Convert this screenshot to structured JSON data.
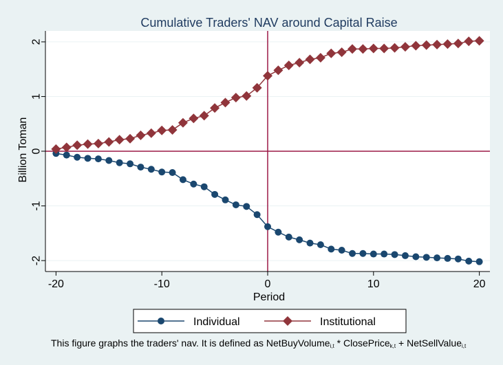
{
  "chart_data": {
    "type": "line",
    "title": "Cumulative Traders' NAV around Capital Raise",
    "xlabel": "Period",
    "ylabel": "Billion Toman",
    "xlim": [
      -21,
      21
    ],
    "ylim": [
      -2.2,
      2.2
    ],
    "xticks": [
      -20,
      -10,
      0,
      10,
      20
    ],
    "xtick_labels": [
      "-20",
      "-10",
      "0",
      "10",
      "20"
    ],
    "yticks": [
      -2,
      -1,
      0,
      1,
      2
    ],
    "ytick_labels": [
      "-2",
      "-1",
      "0",
      "1",
      "2"
    ],
    "grid": "horizontal",
    "legend_position": "bottom",
    "reference_lines": {
      "x": 0,
      "y": 0
    },
    "x": [
      -20,
      -19,
      -18,
      -17,
      -16,
      -15,
      -14,
      -13,
      -12,
      -11,
      -10,
      -9,
      -8,
      -7,
      -6,
      -5,
      -4,
      -3,
      -2,
      -1,
      0,
      1,
      2,
      3,
      4,
      5,
      6,
      7,
      8,
      9,
      10,
      11,
      12,
      13,
      14,
      15,
      16,
      17,
      18,
      19,
      20
    ],
    "series": [
      {
        "name": "Individual",
        "color": "#1a476f",
        "marker": "circle",
        "values": [
          -0.04,
          -0.07,
          -0.11,
          -0.13,
          -0.14,
          -0.17,
          -0.21,
          -0.23,
          -0.29,
          -0.33,
          -0.38,
          -0.39,
          -0.52,
          -0.6,
          -0.65,
          -0.79,
          -0.89,
          -0.98,
          -1.01,
          -1.16,
          -1.38,
          -1.48,
          -1.57,
          -1.62,
          -1.68,
          -1.71,
          -1.79,
          -1.81,
          -1.87,
          -1.87,
          -1.88,
          -1.88,
          -1.89,
          -1.91,
          -1.93,
          -1.94,
          -1.95,
          -1.96,
          -1.97,
          -2.01,
          -2.02
        ]
      },
      {
        "name": "Institutional",
        "color": "#90353b",
        "marker": "diamond",
        "values": [
          0.04,
          0.07,
          0.11,
          0.13,
          0.14,
          0.17,
          0.21,
          0.23,
          0.29,
          0.33,
          0.38,
          0.39,
          0.52,
          0.6,
          0.65,
          0.79,
          0.89,
          0.98,
          1.01,
          1.16,
          1.38,
          1.48,
          1.57,
          1.62,
          1.68,
          1.71,
          1.79,
          1.81,
          1.87,
          1.87,
          1.88,
          1.88,
          1.89,
          1.91,
          1.93,
          1.94,
          1.95,
          1.96,
          1.97,
          2.01,
          2.02
        ]
      }
    ],
    "note_prefix": "This figure graphs the traders' nav. It is defined as NetBuyVolume",
    "note_sub1": "i,t",
    "note_mid1": " * ClosePrice",
    "note_sub2": "k,t",
    "note_mid2": " + NetSellValue",
    "note_sub3": "i,t"
  },
  "colors": {
    "background": "#eaf2f3",
    "plot_area": "#ffffff",
    "reference_line": "#9b1846",
    "grid": "#eaf2f3",
    "title": "#1e3a5f"
  }
}
